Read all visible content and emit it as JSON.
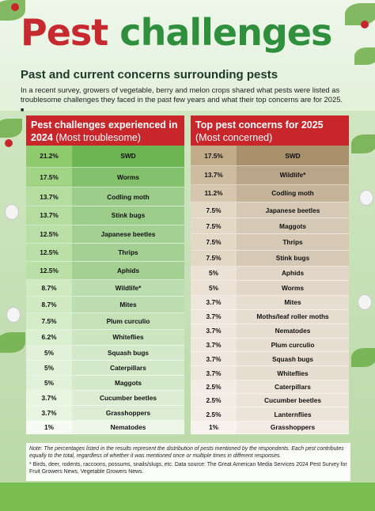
{
  "title_word1": "Pest",
  "title_word2": "challenges",
  "subtitle": "Past and current concerns surrounding pests",
  "intro": "In a recent survey, growers of vegetable, berry and melon crops shared what pests were listed as troublesome challenges they faced in the past few years and what their top concerns are for 2025.",
  "end_mark": "■",
  "note_line1": "Note: The percentages listed in the results represent the distribution of pests mentioned by the respondents. Each pest contributes equally to the total, regardless of whether it was mentioned once or multiple times in different responses.",
  "note_line2": "* Birds, deer, rodents, raccoons, possums, snails/slugs, etc. Data source: The Great American Media Services 2024 Pest Survey for Fruit Growers News, Vegetable Growers News.",
  "colors": {
    "red": "#c8262b",
    "green": "#2f8f3c",
    "left_shades": "green",
    "right_shades": "brown"
  },
  "chart_data": [
    {
      "type": "table",
      "title": "Pest challenges experienced in 2024",
      "subtitle": "(Most troublesome)",
      "categories": [
        "SWD",
        "Worms",
        "Codling moth",
        "Stink  bugs",
        "Japanese beetles",
        "Thrips",
        "Aphids",
        "Wildlife*",
        "Mites",
        "Plum curculio",
        "Whiteflies",
        "Squash bugs",
        "Caterpillars",
        "Maggots",
        "Cucumber beetles",
        "Grasshoppers",
        "Nematodes"
      ],
      "values": [
        21.2,
        17.5,
        13.7,
        13.7,
        12.5,
        12.5,
        12.5,
        8.7,
        8.7,
        7.5,
        6.2,
        5,
        5,
        5,
        3.7,
        3.7,
        1
      ],
      "labels": [
        "21.2%",
        "17.5%",
        "13.7%",
        "13.7%",
        "12.5%",
        "12.5%",
        "12.5%",
        "8.7%",
        "8.7%",
        "7.5%",
        "6.2%",
        "5%",
        "5%",
        "5%",
        "3.7%",
        "3.7%",
        "1%"
      ]
    },
    {
      "type": "table",
      "title": "Top pest concerns for 2025",
      "subtitle": "(Most concerned)",
      "categories": [
        "SWD",
        "Wildlife*",
        "Codling moth",
        "Japanese beetles",
        "Maggots",
        "Thrips",
        "Stink bugs",
        "Aphids",
        "Worms",
        "Mites",
        "Moths/leaf roller moths",
        "Nematodes",
        "Plum curculio",
        "Squash bugs",
        "Whiteflies",
        "Caterpillars",
        "Cucumber beetles",
        "Lanternflies",
        "Grasshoppers"
      ],
      "values": [
        17.5,
        13.7,
        11.2,
        7.5,
        7.5,
        7.5,
        7.5,
        5,
        5,
        3.7,
        3.7,
        3.7,
        3.7,
        3.7,
        3.7,
        2.5,
        2.5,
        2.5,
        1
      ],
      "labels": [
        "17.5%",
        "13.7%",
        "11.2%",
        "7.5%",
        "7.5%",
        "7.5%",
        "7.5%",
        "5%",
        "5%",
        "3.7%",
        "3.7%",
        "3.7%",
        "3.7%",
        "3.7%",
        "3.7%",
        "2.5%",
        "2.5%",
        "2.5%",
        "1%"
      ]
    }
  ]
}
